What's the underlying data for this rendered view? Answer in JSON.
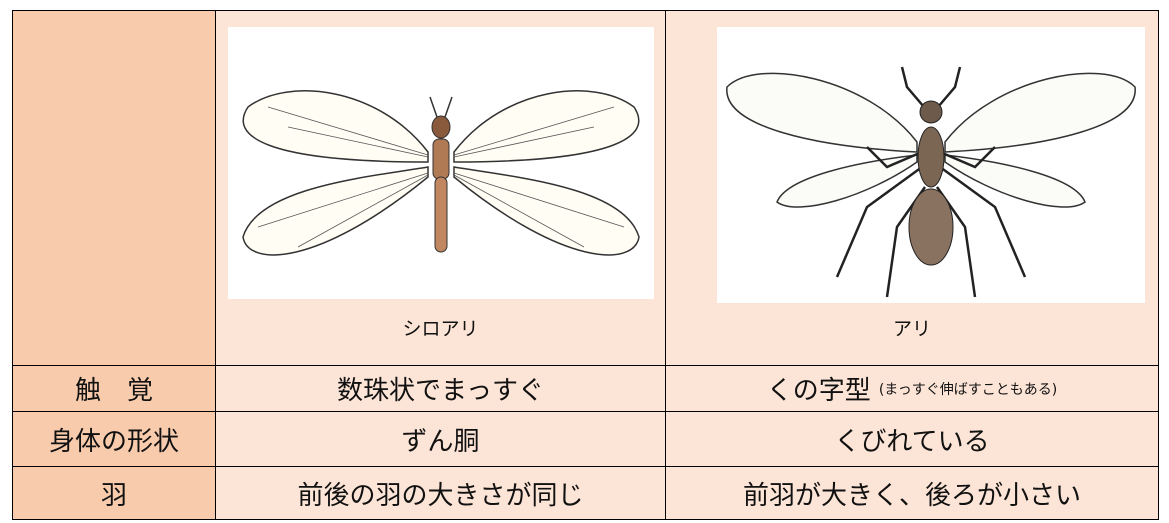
{
  "table": {
    "species": [
      "シロアリ",
      "アリ"
    ],
    "rows": [
      [
        "触　覚",
        "数珠状でまっすぐ",
        "くの字型"
      ],
      [
        "身体の形状",
        "ずん胴",
        "くびれている"
      ],
      [
        "羽",
        "前後の羽の大きさが同じ",
        "前羽が大きく、後ろが小さい"
      ]
    ],
    "antenna_note": "(まっすぐ伸ばすこともある)"
  }
}
